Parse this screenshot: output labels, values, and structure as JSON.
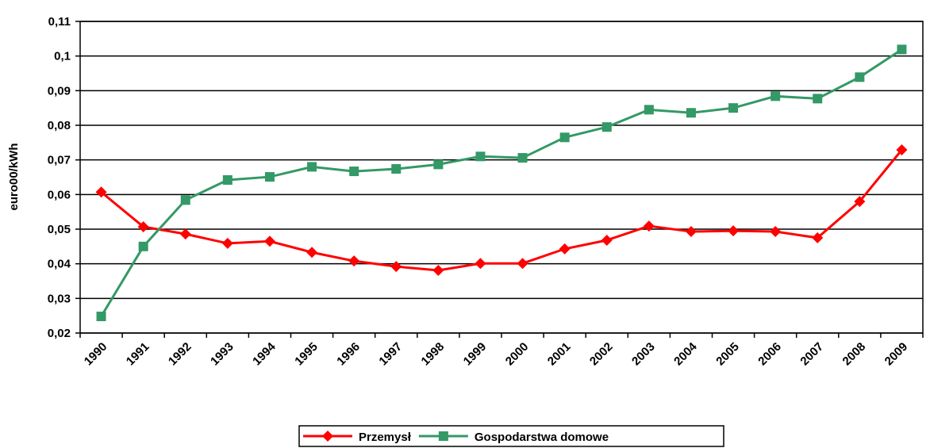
{
  "chart_data": {
    "type": "line",
    "y_label": "euro00/kWh",
    "categories": [
      "1990",
      "1991",
      "1992",
      "1993",
      "1994",
      "1995",
      "1996",
      "1997",
      "1998",
      "1999",
      "2000",
      "2001",
      "2002",
      "2003",
      "2004",
      "2005",
      "2006",
      "2007",
      "2008",
      "2009"
    ],
    "series": [
      {
        "name": "Przemysł",
        "color": "#ff0000",
        "marker": "diamond",
        "values": [
          0.0607,
          0.0507,
          0.0486,
          0.0459,
          0.0465,
          0.0433,
          0.0408,
          0.0392,
          0.0381,
          0.0401,
          0.0401,
          0.0443,
          0.0468,
          0.0509,
          0.0493,
          0.0495,
          0.0493,
          0.0475,
          0.058,
          0.0729
        ]
      },
      {
        "name": "Gospodarstwa domowe",
        "color": "#339966",
        "marker": "square",
        "values": [
          0.0248,
          0.045,
          0.0584,
          0.0642,
          0.0651,
          0.068,
          0.0667,
          0.0674,
          0.0687,
          0.071,
          0.0706,
          0.0765,
          0.0795,
          0.0845,
          0.0836,
          0.085,
          0.0884,
          0.0877,
          0.0939,
          0.1019
        ]
      }
    ],
    "ylim": [
      0.02,
      0.11
    ],
    "yticks": [
      {
        "value": 0.02,
        "label": "0,02"
      },
      {
        "value": 0.03,
        "label": "0,03"
      },
      {
        "value": 0.04,
        "label": "0,04"
      },
      {
        "value": 0.05,
        "label": "0,05"
      },
      {
        "value": 0.06,
        "label": "0,06"
      },
      {
        "value": 0.07,
        "label": "0,07"
      },
      {
        "value": 0.08,
        "label": "0,08"
      },
      {
        "value": 0.09,
        "label": "0,09"
      },
      {
        "value": 0.1,
        "label": "0,1"
      },
      {
        "value": 0.11,
        "label": "0,11"
      }
    ],
    "grid": true
  }
}
